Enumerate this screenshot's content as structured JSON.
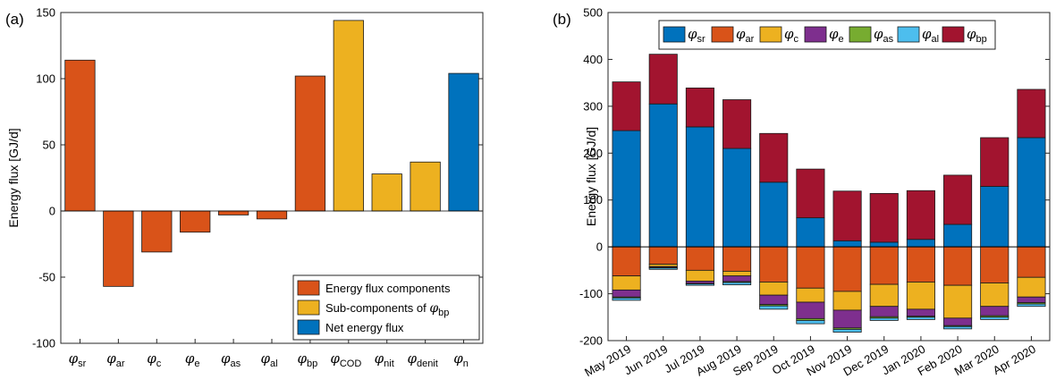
{
  "chart_data": [
    {
      "panel_label": "(a)",
      "type": "bar",
      "categories": [
        {
          "symbol": "φ",
          "sub": "sr"
        },
        {
          "symbol": "φ",
          "sub": "ar"
        },
        {
          "symbol": "φ",
          "sub": "c"
        },
        {
          "symbol": "φ",
          "sub": "e"
        },
        {
          "symbol": "φ",
          "sub": "as"
        },
        {
          "symbol": "φ",
          "sub": "al"
        },
        {
          "symbol": "φ",
          "sub": "bp"
        },
        {
          "symbol": "φ",
          "sub": "COD"
        },
        {
          "symbol": "φ",
          "sub": "nit"
        },
        {
          "symbol": "φ",
          "sub": "denit"
        },
        {
          "symbol": "φ",
          "sub": "n"
        }
      ],
      "values": [
        114,
        -57,
        -31,
        -16,
        -3,
        -6,
        102,
        144,
        28,
        37,
        104
      ],
      "groups": [
        "components",
        "components",
        "components",
        "components",
        "components",
        "components",
        "components",
        "sub",
        "sub",
        "sub",
        "net"
      ],
      "ylabel": "Energy flux [GJ/d]",
      "ylim": [
        -100,
        150
      ],
      "yticks": [
        -100,
        -50,
        0,
        50,
        100,
        150
      ],
      "legend": {
        "position": "bottom-right",
        "entries": [
          {
            "key": "components",
            "label": "Energy flux components",
            "sub": "",
            "color": "#d95319"
          },
          {
            "key": "sub",
            "label": "Sub-components of ",
            "symbol": "φ",
            "sub": "bp",
            "color": "#edb120"
          },
          {
            "key": "net",
            "label": "Net energy flux",
            "sub": "",
            "color": "#0072bd"
          }
        ]
      }
    },
    {
      "panel_label": "(b)",
      "type": "bar",
      "stacked": true,
      "categories": [
        "May 2019",
        "Jun 2019",
        "Jul 2019",
        "Aug 2019",
        "Sep 2019",
        "Oct 2019",
        "Nov 2019",
        "Dec 2019",
        "Jan 2020",
        "Feb 2020",
        "Mar 2020",
        "Apr 2020"
      ],
      "ylabel": "Energy flux [GJ/d]",
      "ylim": [
        -200,
        500
      ],
      "yticks": [
        -200,
        -100,
        0,
        100,
        200,
        300,
        400,
        500
      ],
      "series": [
        {
          "name": "sr",
          "color": "#0072bd",
          "values": [
            248,
            305,
            256,
            210,
            138,
            62,
            13,
            10,
            16,
            48,
            129,
            233
          ]
        },
        {
          "name": "ar",
          "color": "#d95319",
          "values": [
            -62,
            -37,
            -50,
            -52,
            -75,
            -88,
            -95,
            -80,
            -75,
            -82,
            -77,
            -65
          ]
        },
        {
          "name": "c",
          "color": "#edb120",
          "values": [
            -30,
            -5,
            -23,
            -10,
            -28,
            -30,
            -40,
            -47,
            -58,
            -70,
            -50,
            -42
          ]
        },
        {
          "name": "e",
          "color": "#7e2f8e",
          "values": [
            -15,
            -2,
            -5,
            -12,
            -20,
            -35,
            -38,
            -22,
            -15,
            -16,
            -20,
            -12
          ]
        },
        {
          "name": "as",
          "color": "#77ac30",
          "values": [
            -2,
            -1,
            -1,
            -2,
            -3,
            -4,
            -3,
            -3,
            -2,
            -2,
            -3,
            -3
          ]
        },
        {
          "name": "al",
          "color": "#4dbeee",
          "values": [
            -5,
            -3,
            -3,
            -5,
            -7,
            -7,
            -6,
            -5,
            -5,
            -5,
            -5,
            -5
          ]
        },
        {
          "name": "bp",
          "color": "#a2142f",
          "values": [
            104,
            106,
            83,
            104,
            104,
            104,
            106,
            104,
            104,
            105,
            104,
            103
          ]
        }
      ],
      "legend": {
        "position": "top",
        "symbol": "φ"
      }
    }
  ]
}
